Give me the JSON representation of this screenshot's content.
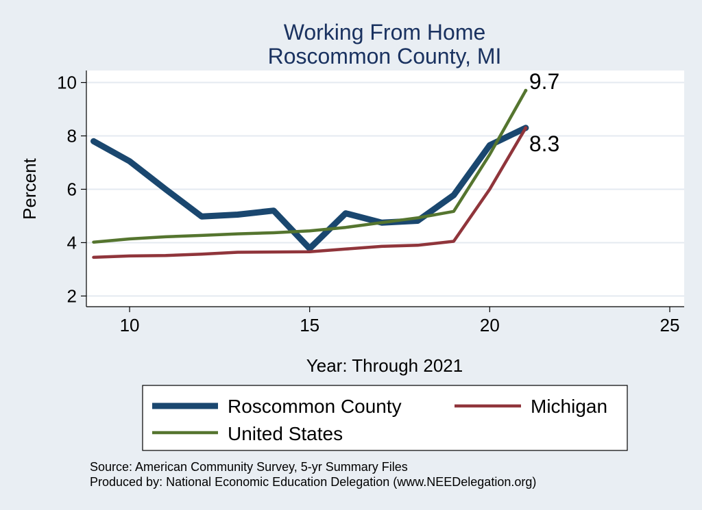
{
  "chart_data": {
    "type": "line",
    "title": [
      "Working From Home",
      "Roscommon County, MI"
    ],
    "xlabel": "Year: Through 2021",
    "ylabel": "Percent",
    "xlim": [
      8.8,
      25.4
    ],
    "ylim": [
      1.6,
      10.45
    ],
    "xticks": [
      10,
      15,
      20,
      25
    ],
    "yticks": [
      2,
      4,
      6,
      8,
      10
    ],
    "grid": true,
    "legend_position": "bottom",
    "series": [
      {
        "name": "Roscommon County",
        "color": "#1a476f",
        "x": [
          9,
          10,
          11,
          12,
          13,
          14,
          15,
          16,
          17,
          18,
          19,
          20,
          21
        ],
        "values": [
          7.8,
          7.05,
          6.0,
          4.98,
          5.05,
          5.2,
          3.78,
          5.1,
          4.75,
          4.82,
          5.78,
          7.65,
          8.3
        ]
      },
      {
        "name": "Michigan",
        "color": "#90353b",
        "x": [
          9,
          10,
          11,
          12,
          13,
          14,
          15,
          16,
          17,
          18,
          19,
          20,
          21
        ],
        "values": [
          3.45,
          3.5,
          3.52,
          3.57,
          3.64,
          3.65,
          3.66,
          3.76,
          3.86,
          3.9,
          4.05,
          6.0,
          8.3
        ]
      },
      {
        "name": "United States",
        "color": "#55752f",
        "x": [
          9,
          10,
          11,
          12,
          13,
          14,
          15,
          16,
          17,
          18,
          19,
          20,
          21
        ],
        "values": [
          4.02,
          4.14,
          4.22,
          4.27,
          4.33,
          4.37,
          4.44,
          4.57,
          4.75,
          4.93,
          5.17,
          7.3,
          9.7
        ]
      }
    ],
    "annotations": [
      {
        "text": "9.7",
        "x": 21,
        "y": 9.7
      },
      {
        "text": "8.3",
        "x": 21,
        "y": 8.3
      }
    ],
    "legend": [
      {
        "label": "Roscommon County",
        "color": "#1a476f"
      },
      {
        "label": "Michigan",
        "color": "#90353b"
      },
      {
        "label": "United States",
        "color": "#55752f"
      }
    ]
  },
  "footer": {
    "source": "Source: American Community Survey, 5-yr Summary Files",
    "produced_by": "Produced by: National Economic Education Delegation (www.NEEDelegation.org)"
  }
}
